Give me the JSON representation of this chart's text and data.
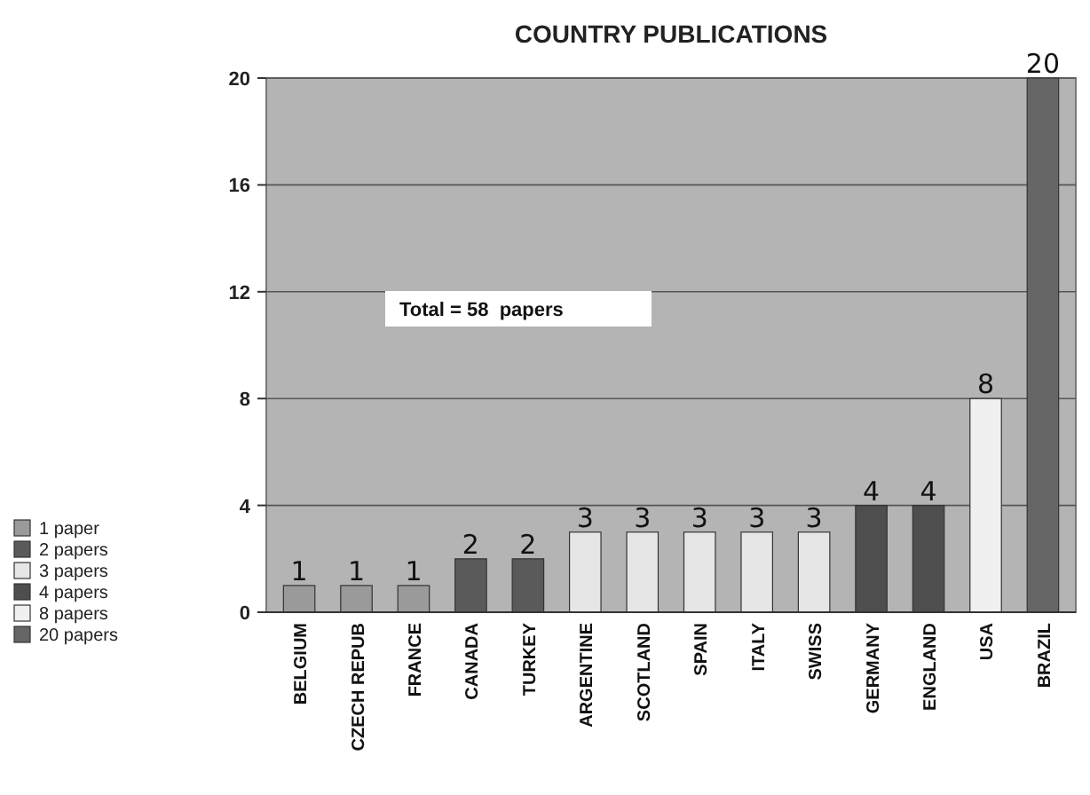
{
  "chart_data": {
    "type": "bar",
    "title": "COUNTRY PUBLICATIONS",
    "categories": [
      "BELGIUM",
      "CZECH REPUB",
      "FRANCE",
      "CANADA",
      "TURKEY",
      "ARGENTINE",
      "SCOTLAND",
      "SPAIN",
      "ITALY",
      "SWISS",
      "GERMANY",
      "ENGLAND",
      "USA",
      "BRAZIL"
    ],
    "series": [
      {
        "name": "1 paper",
        "color": "#9a9a9a",
        "values": [
          1,
          1,
          1,
          null,
          null,
          null,
          null,
          null,
          null,
          null,
          null,
          null,
          null,
          null
        ]
      },
      {
        "name": "2 papers",
        "color": "#5a5a5a",
        "values": [
          null,
          null,
          null,
          2,
          2,
          null,
          null,
          null,
          null,
          null,
          null,
          null,
          null,
          null
        ]
      },
      {
        "name": "3 papers",
        "color": "#e6e6e6",
        "values": [
          null,
          null,
          null,
          null,
          null,
          3,
          3,
          3,
          3,
          3,
          null,
          null,
          null,
          null
        ]
      },
      {
        "name": "4 papers",
        "color": "#4e4e4e",
        "values": [
          null,
          null,
          null,
          null,
          null,
          null,
          null,
          null,
          null,
          null,
          4,
          4,
          null,
          null
        ]
      },
      {
        "name": "8 papers",
        "color": "#f0f0f0",
        "values": [
          null,
          null,
          null,
          null,
          null,
          null,
          null,
          null,
          null,
          null,
          null,
          null,
          8,
          null
        ]
      },
      {
        "name": "20 papers",
        "color": "#666666",
        "values": [
          null,
          null,
          null,
          null,
          null,
          null,
          null,
          null,
          null,
          null,
          null,
          null,
          null,
          20
        ]
      }
    ],
    "stacked": true,
    "ylim": [
      0,
      20
    ],
    "yticks": [
      0,
      4,
      8,
      12,
      16,
      20
    ],
    "grid": "y",
    "legend": "left",
    "data_labels": true,
    "annotations": [
      "Total = 58  papers"
    ]
  }
}
